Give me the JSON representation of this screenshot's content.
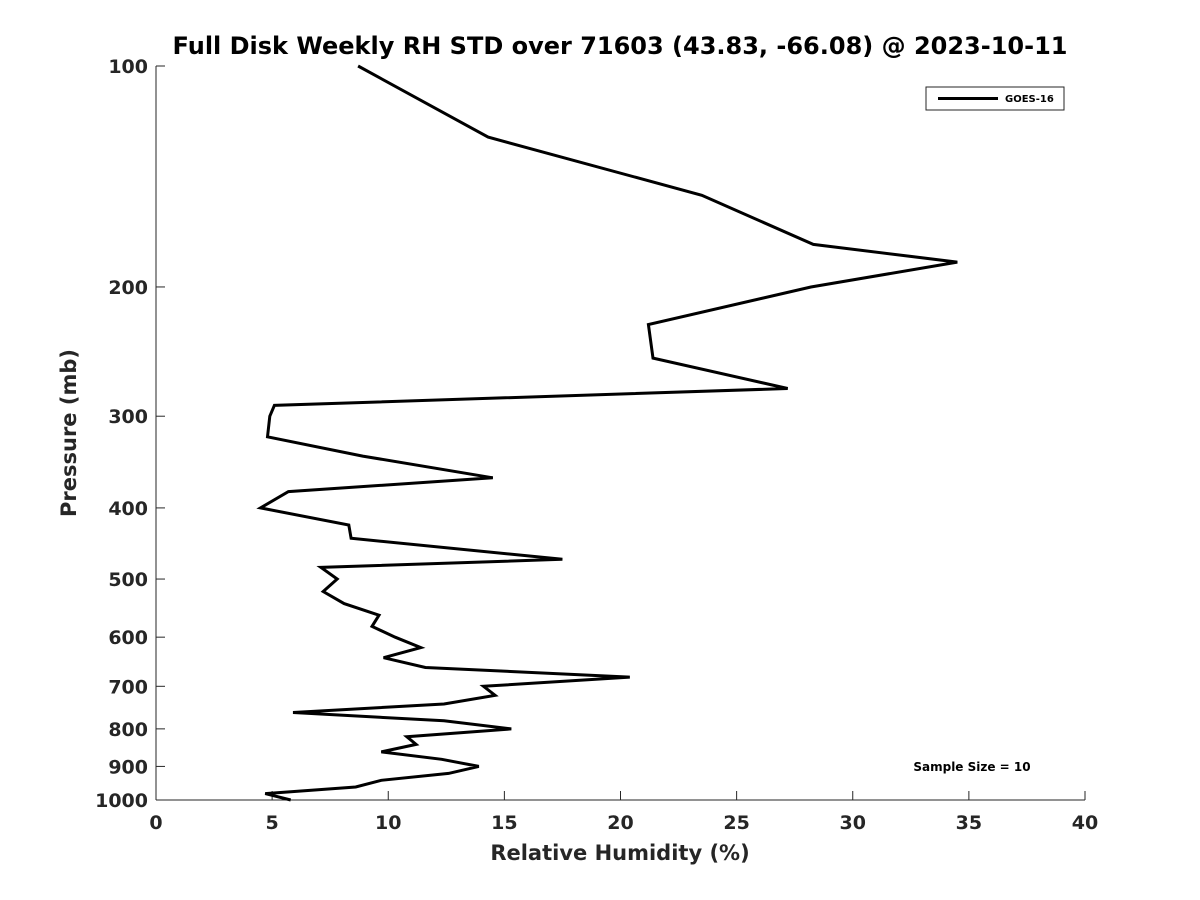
{
  "chart_data": {
    "type": "line",
    "title": "Full Disk Weekly RH STD over 71603 (43.83, -66.08) @ 2023-10-11",
    "xlabel": "Relative Humidity (%)",
    "ylabel": "Pressure (mb)",
    "xlim": [
      0,
      40
    ],
    "ylim": [
      100,
      1000
    ],
    "y_scale": "log",
    "y_reversed": true,
    "x_ticks": [
      "0",
      "5",
      "10",
      "15",
      "20",
      "25",
      "30",
      "35",
      "40"
    ],
    "y_ticks": [
      "100",
      "200",
      "300",
      "400",
      "500",
      "600",
      "700",
      "800",
      "900",
      "1000"
    ],
    "legend": {
      "position": "top-right",
      "entries": [
        "GOES-16"
      ]
    },
    "annotation": "Sample Size = 10",
    "series": [
      {
        "name": "GOES-16",
        "color": "#000000",
        "points": [
          [
            8.7,
            100
          ],
          [
            14.3,
            125
          ],
          [
            23.5,
            150
          ],
          [
            28.3,
            175
          ],
          [
            34.5,
            185
          ],
          [
            28.2,
            200
          ],
          [
            21.2,
            225
          ],
          [
            21.4,
            250
          ],
          [
            27.2,
            275
          ],
          [
            5.1,
            290
          ],
          [
            4.9,
            300
          ],
          [
            4.8,
            320
          ],
          [
            8.9,
            340
          ],
          [
            14.5,
            364
          ],
          [
            5.7,
            380
          ],
          [
            4.5,
            400
          ],
          [
            8.3,
            422
          ],
          [
            8.4,
            440
          ],
          [
            17.5,
            470
          ],
          [
            7.1,
            482
          ],
          [
            7.8,
            500
          ],
          [
            7.2,
            520
          ],
          [
            8.1,
            540
          ],
          [
            9.6,
            560
          ],
          [
            9.3,
            580
          ],
          [
            10.3,
            600
          ],
          [
            11.4,
            620
          ],
          [
            9.8,
            640
          ],
          [
            11.6,
            660
          ],
          [
            20.4,
            680
          ],
          [
            14.1,
            700
          ],
          [
            14.6,
            720
          ],
          [
            12.4,
            740
          ],
          [
            5.9,
            760
          ],
          [
            12.4,
            780
          ],
          [
            15.3,
            800
          ],
          [
            10.8,
            820
          ],
          [
            11.2,
            840
          ],
          [
            9.7,
            860
          ],
          [
            12.3,
            880
          ],
          [
            13.9,
            900
          ],
          [
            12.6,
            920
          ],
          [
            9.7,
            940
          ],
          [
            8.6,
            960
          ],
          [
            4.7,
            980
          ],
          [
            5.8,
            1000
          ]
        ]
      }
    ]
  }
}
